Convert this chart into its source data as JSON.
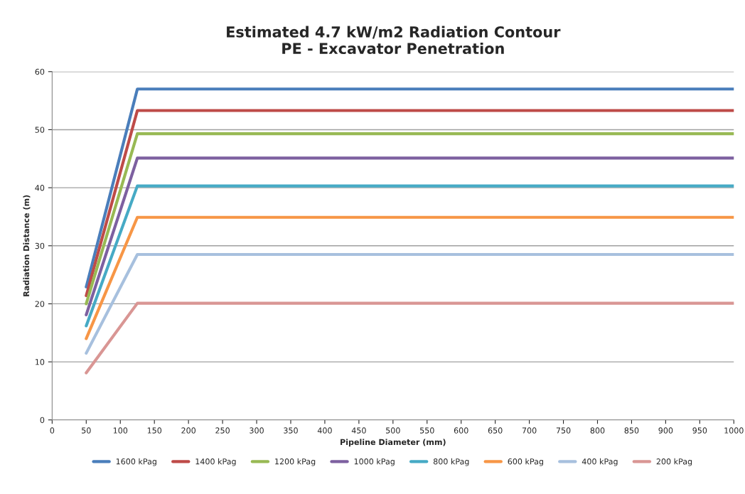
{
  "chart_data": {
    "type": "line",
    "title": "Estimated 4.7 kW/m2 Radiation Contour\nPE - Excavator Penetration",
    "xlabel": "Pipeline Diameter (mm)",
    "ylabel": "Radiation Distance (m)",
    "x": [
      50,
      125,
      1000
    ],
    "series": [
      {
        "name": "1600 kPag",
        "color": "#4a7ebb",
        "values": [
          22.9,
          57.0,
          57.0
        ]
      },
      {
        "name": "1400 kPag",
        "color": "#be4b48",
        "values": [
          21.4,
          53.3,
          53.3
        ]
      },
      {
        "name": "1200 kPag",
        "color": "#98b954",
        "values": [
          20.0,
          49.3,
          49.3
        ]
      },
      {
        "name": "1000 kPag",
        "color": "#7d60a0",
        "values": [
          18.1,
          45.1,
          45.1
        ]
      },
      {
        "name": "800 kPag",
        "color": "#46aac5",
        "values": [
          16.2,
          40.3,
          40.3
        ]
      },
      {
        "name": "600 kPag",
        "color": "#f79646",
        "values": [
          14.0,
          34.9,
          34.9
        ]
      },
      {
        "name": "400 kPag",
        "color": "#a7c0de",
        "values": [
          11.5,
          28.5,
          28.5
        ]
      },
      {
        "name": "200 kPag",
        "color": "#d99694",
        "values": [
          8.1,
          20.1,
          20.1
        ]
      }
    ],
    "xlim": [
      0,
      1000
    ],
    "xticks": [
      0,
      50,
      100,
      150,
      200,
      250,
      300,
      350,
      400,
      450,
      500,
      550,
      600,
      650,
      700,
      750,
      800,
      850,
      900,
      950,
      1000
    ],
    "ylim": [
      0,
      60
    ],
    "yticks": [
      0,
      10,
      20,
      30,
      40,
      50,
      60
    ],
    "grid": "y",
    "legend": "bottom",
    "marker": "none",
    "line_style": "solid"
  }
}
